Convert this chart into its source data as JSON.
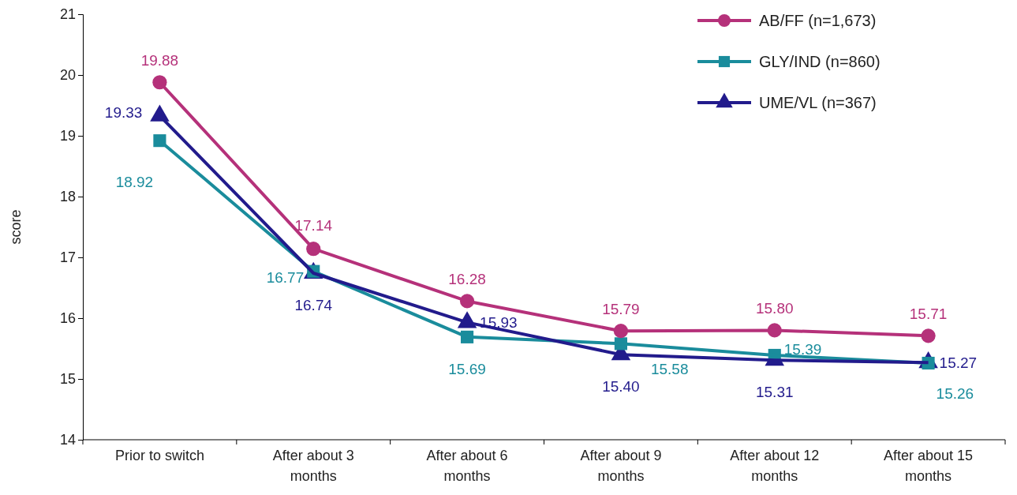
{
  "chart_data": {
    "type": "line",
    "ylabel": "score",
    "categories": [
      "Prior to switch",
      "After about 3 months",
      "After about 6 months",
      "After about 9 months",
      "After about 12 months",
      "After about 15 months"
    ],
    "series": [
      {
        "name": "AB/FF (n=1,673)",
        "color": "#b5317a",
        "marker": "circle",
        "values": [
          19.88,
          17.14,
          16.28,
          15.79,
          15.8,
          15.71
        ],
        "value_labels": [
          "19.88",
          "17.14",
          "16.28",
          "15.79",
          "15.80",
          "15.71"
        ]
      },
      {
        "name": "GLY/IND (n=860)",
        "color": "#1a8c9c",
        "marker": "square",
        "values": [
          18.92,
          16.77,
          15.69,
          15.58,
          15.39,
          15.26
        ],
        "value_labels": [
          "18.92",
          "16.77",
          "15.69",
          "15.58",
          "15.39",
          "15.26"
        ]
      },
      {
        "name": "UME/VL (n=367)",
        "color": "#221b8c",
        "marker": "triangle",
        "values": [
          19.33,
          16.74,
          15.93,
          15.4,
          15.31,
          15.27
        ],
        "value_labels": [
          "19.33",
          "16.74",
          "15.93",
          "15.40",
          "15.31",
          "15.27"
        ]
      }
    ],
    "ylim": [
      14,
      21
    ],
    "yticks": [
      14,
      15,
      16,
      17,
      18,
      19,
      20,
      21
    ],
    "grid": false,
    "legend": "top right",
    "line_style": "solid"
  }
}
